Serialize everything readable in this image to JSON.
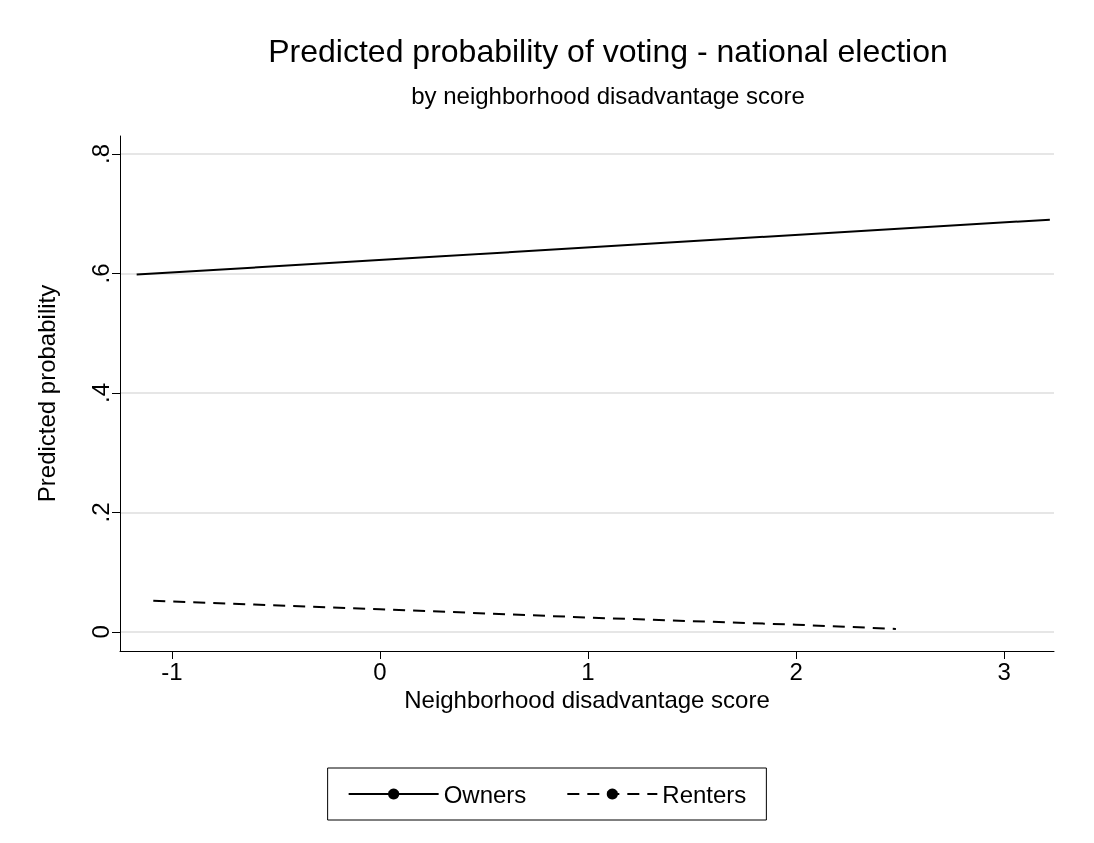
{
  "chart_data": {
    "type": "line",
    "title": "Predicted probability of voting - national election",
    "subtitle": "by neighborhood disadvantage score",
    "xlabel": "Neighborhood disadvantage score",
    "ylabel": "Predicted probability",
    "xlim": [
      -1.25,
      3.24
    ],
    "xticks": [
      -1,
      0,
      1,
      2,
      3
    ],
    "ylim": [
      -0.032,
      0.83
    ],
    "yticks": [
      {
        "value": 0,
        "label": "0"
      },
      {
        "value": 0.2,
        "label": ".2"
      },
      {
        "value": 0.4,
        "label": ".4"
      },
      {
        "value": 0.6,
        "label": ".6"
      },
      {
        "value": 0.8,
        "label": ".8"
      }
    ],
    "grid": "y",
    "legend": "bottom",
    "marker": "none",
    "series": [
      {
        "name": "Owners",
        "color": "#000000",
        "line_style": "solid",
        "x": [
          -1.17,
          3.22
        ],
        "values": [
          0.598,
          0.69
        ]
      },
      {
        "name": "Renters",
        "color": "#000000",
        "line_style": "dashed",
        "x": [
          -1.09,
          0,
          1,
          2,
          2.48
        ],
        "values": [
          0.052,
          0.038,
          0.024,
          0.012,
          0.005
        ]
      }
    ]
  }
}
